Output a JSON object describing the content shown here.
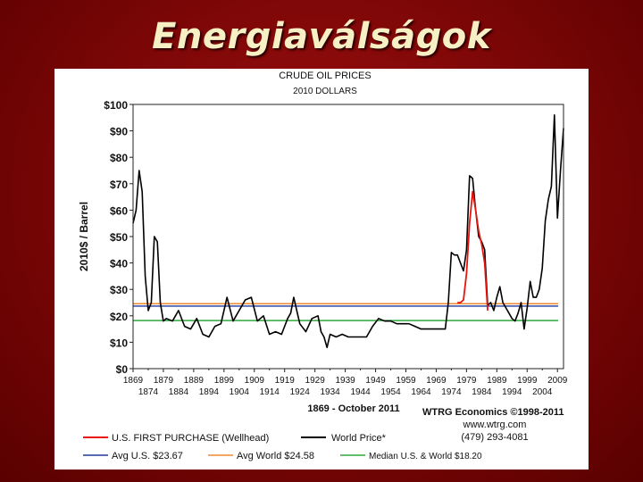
{
  "slide": {
    "title": "Energiaválságok"
  },
  "chart_data": {
    "type": "line",
    "title": "CRUDE OIL PRICES",
    "subtitle": "2010 DOLLARS",
    "ylabel": "2010$ / Barrel",
    "xlabel": "1869 - October 2011",
    "ylim": [
      0,
      100
    ],
    "xlim": [
      1869,
      2011
    ],
    "y_ticks": [
      0,
      10,
      20,
      30,
      40,
      50,
      60,
      70,
      80,
      90,
      100
    ],
    "y_tick_labels": [
      "$0",
      "$10",
      "$20",
      "$30",
      "$40",
      "$50",
      "$60",
      "$70",
      "$80",
      "$90",
      "$100"
    ],
    "x_ticks_upper": [
      1869,
      1879,
      1889,
      1899,
      1909,
      1919,
      1929,
      1939,
      1949,
      1959,
      1969,
      1979,
      1989,
      1999,
      2009
    ],
    "x_ticks_lower": [
      1874,
      1884,
      1894,
      1904,
      1914,
      1924,
      1934,
      1944,
      1954,
      1964,
      1974,
      1984,
      1994,
      2004
    ],
    "grid": false,
    "legend_position": "bottom",
    "series": [
      {
        "name": "World Price*",
        "color": "#000000",
        "x": [
          1869,
          1870,
          1871,
          1872,
          1873,
          1874,
          1875,
          1876,
          1877,
          1878,
          1879,
          1880,
          1882,
          1884,
          1886,
          1888,
          1890,
          1892,
          1894,
          1896,
          1898,
          1900,
          1902,
          1904,
          1906,
          1908,
          1910,
          1912,
          1914,
          1916,
          1918,
          1919,
          1920,
          1921,
          1922,
          1924,
          1926,
          1928,
          1930,
          1931,
          1932,
          1933,
          1934,
          1936,
          1938,
          1940,
          1942,
          1944,
          1946,
          1948,
          1950,
          1952,
          1954,
          1956,
          1958,
          1960,
          1962,
          1964,
          1966,
          1968,
          1970,
          1972,
          1973,
          1974,
          1975,
          1976,
          1977,
          1978,
          1979,
          1980,
          1981,
          1982,
          1983,
          1984,
          1985,
          1986,
          1987,
          1988,
          1989,
          1990,
          1991,
          1992,
          1993,
          1994,
          1995,
          1996,
          1997,
          1998,
          1999,
          2000,
          2001,
          2002,
          2003,
          2004,
          2005,
          2006,
          2007,
          2008,
          2009,
          2010,
          2011
        ],
        "y": [
          55,
          60,
          75,
          67,
          35,
          22,
          25,
          50,
          48,
          25,
          18,
          19,
          18,
          22,
          16,
          15,
          19,
          13,
          12,
          16,
          17,
          27,
          18,
          22,
          26,
          27,
          18,
          20,
          13,
          14,
          13,
          16,
          19,
          21,
          27,
          17,
          14,
          19,
          20,
          14,
          12,
          8,
          13,
          12,
          13,
          12,
          12,
          12,
          12,
          16,
          19,
          18,
          18,
          17,
          17,
          17,
          16,
          15,
          15,
          15,
          15,
          15,
          25,
          44,
          43,
          43,
          40,
          37,
          45,
          73,
          72,
          60,
          50,
          48,
          45,
          24,
          25,
          22,
          27,
          31,
          25,
          23,
          21,
          19,
          18,
          21,
          25,
          15,
          23,
          33,
          27,
          27,
          30,
          38,
          56,
          64,
          69,
          96,
          57,
          75,
          91
        ]
      },
      {
        "name": "U.S. FIRST PURCHASE (Wellhead)",
        "color": "#e8140f",
        "x": [
          1976,
          1977,
          1978,
          1979,
          1980,
          1981,
          1982,
          1983,
          1984,
          1985,
          1986
        ],
        "y": [
          25,
          25,
          26,
          36,
          55,
          67,
          60,
          52,
          47,
          40,
          22
        ]
      },
      {
        "name": "Avg U.S. $23.67",
        "color": "#1f3a9a",
        "constant": 23.67
      },
      {
        "name": "Avg World $24.58",
        "color": "#f08a2c",
        "constant": 24.58
      },
      {
        "name": "Median U.S. & World $18.20",
        "color": "#2ea83a",
        "constant": 18.2
      }
    ],
    "annotations": {
      "credit": "WTRG Economics ©1998-2011",
      "website": "www.wtrg.com",
      "phone": "(479) 293-4081"
    }
  }
}
